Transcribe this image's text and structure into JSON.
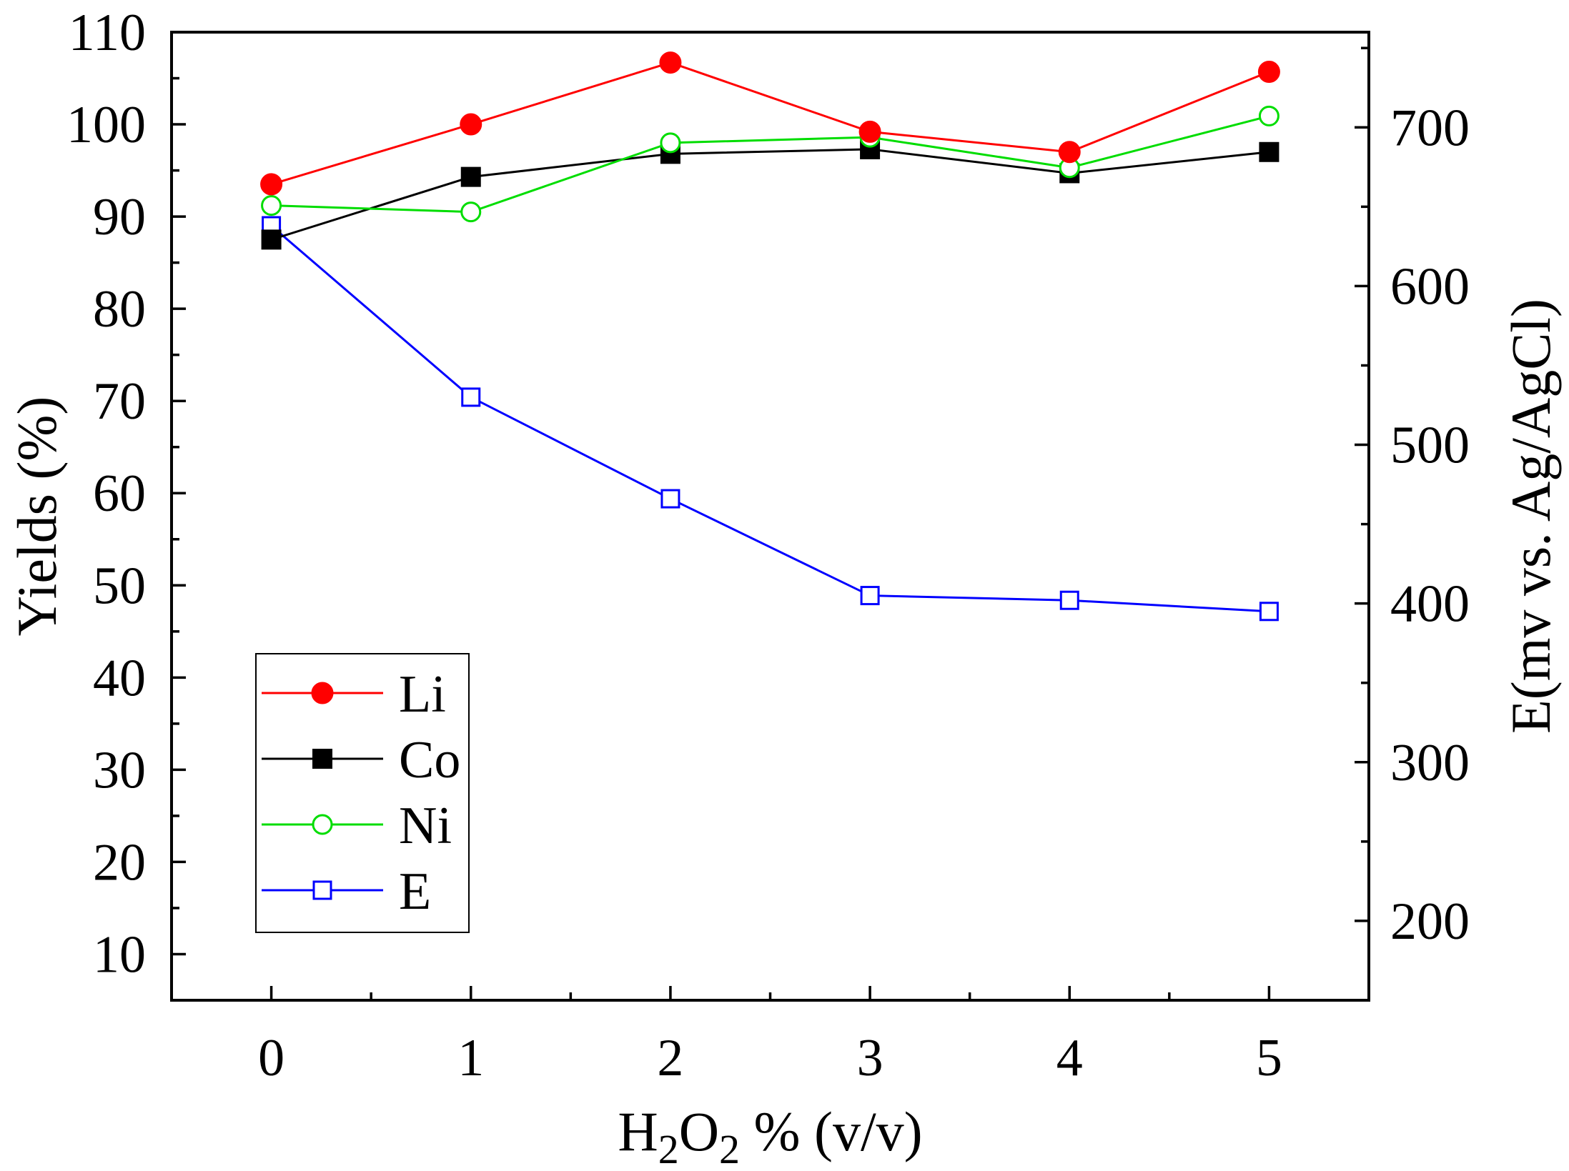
{
  "chart_data": {
    "type": "line",
    "x": [
      0,
      1,
      2,
      3,
      4,
      5
    ],
    "xlabel_parts": [
      "H",
      "2",
      "O",
      "2",
      " % (v/v)"
    ],
    "xlabel": "H2O2 % (v/v)",
    "ylabel": "Yields (%)",
    "y2label": "E(mv vs. Ag/AgCl)",
    "xlim": [
      -0.5,
      5.5
    ],
    "ylim": [
      5,
      110
    ],
    "y2lim": [
      150,
      760
    ],
    "xticks": [
      0,
      1,
      2,
      3,
      4,
      5
    ],
    "yticks": [
      10,
      20,
      30,
      40,
      50,
      60,
      70,
      80,
      90,
      100,
      110
    ],
    "y2ticks": [
      200,
      300,
      400,
      500,
      600,
      700
    ],
    "legend_position": "bottom-left",
    "series": [
      {
        "name": "Li",
        "axis": "left",
        "color": "#ff0000",
        "marker": "filled-circle",
        "values": [
          93.5,
          100,
          106.7,
          99.2,
          97,
          105.7
        ]
      },
      {
        "name": "Co",
        "axis": "left",
        "color": "#000000",
        "marker": "filled-square",
        "values": [
          87.5,
          94.3,
          96.8,
          97.3,
          94.7,
          97
        ]
      },
      {
        "name": "Ni",
        "axis": "left",
        "color": "#00dd00",
        "marker": "open-circle",
        "values": [
          91.2,
          90.5,
          98,
          98.6,
          95.3,
          100.9
        ]
      },
      {
        "name": "E",
        "axis": "right",
        "color": "#0000ff",
        "marker": "open-square",
        "values": [
          638,
          530,
          466,
          405,
          402,
          395
        ]
      }
    ]
  }
}
